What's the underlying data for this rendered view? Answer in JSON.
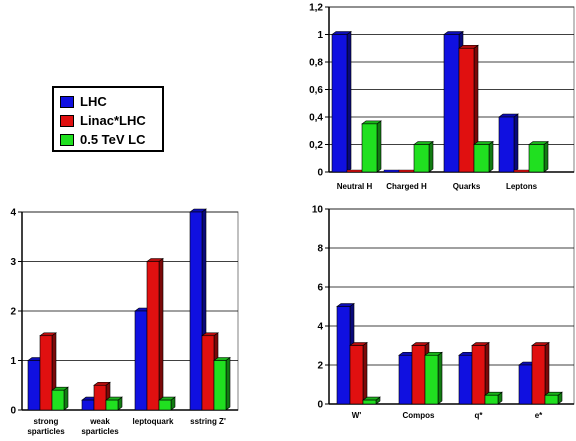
{
  "legend": {
    "position": "left",
    "items": [
      {
        "label": "LHC",
        "color": "#1010e0"
      },
      {
        "label": "Linac*LHC",
        "color": "#e01010"
      },
      {
        "label": "0.5 TeV LC",
        "color": "#20e020"
      }
    ]
  },
  "chart_data": [
    {
      "id": "top-right",
      "type": "bar",
      "categories": [
        "Neutral H",
        "Charged H",
        "Quarks",
        "Leptons"
      ],
      "series": [
        {
          "name": "LHC",
          "values": [
            1.0,
            0.0,
            1.0,
            0.4
          ]
        },
        {
          "name": "Linac*LHC",
          "values": [
            0.0,
            0.0,
            0.9,
            0.0
          ]
        },
        {
          "name": "0.5 TeV LC",
          "values": [
            0.35,
            0.2,
            0.2,
            0.2
          ]
        }
      ],
      "ylim": [
        0,
        1.2
      ],
      "yticks": [
        "0",
        "0,2",
        "0,4",
        "0,6",
        "0,8",
        "1",
        "1,2"
      ],
      "grid": true
    },
    {
      "id": "bottom-left",
      "type": "bar",
      "categories": [
        [
          "strong",
          "sparticles"
        ],
        [
          "weak",
          "sparticles"
        ],
        [
          "leptoquark"
        ],
        [
          "sstring Z'"
        ]
      ],
      "series": [
        {
          "name": "LHC",
          "values": [
            1.0,
            0.2,
            2.0,
            4.0
          ]
        },
        {
          "name": "Linac*LHC",
          "values": [
            1.5,
            0.5,
            3.0,
            1.5
          ]
        },
        {
          "name": "0.5 TeV LC",
          "values": [
            0.4,
            0.2,
            0.2,
            1.0
          ]
        }
      ],
      "ylim": [
        0,
        4
      ],
      "yticks": [
        "0",
        "1",
        "2",
        "3",
        "4"
      ],
      "grid": true
    },
    {
      "id": "bottom-right",
      "type": "bar",
      "categories": [
        "W'",
        "Compos",
        "q*",
        "e*"
      ],
      "series": [
        {
          "name": "LHC",
          "values": [
            5.0,
            2.5,
            2.5,
            2.0
          ]
        },
        {
          "name": "Linac*LHC",
          "values": [
            3.0,
            3.0,
            3.0,
            3.0
          ]
        },
        {
          "name": "0.5 TeV LC",
          "values": [
            0.2,
            2.5,
            0.45,
            0.45
          ]
        }
      ],
      "ylim": [
        0,
        10
      ],
      "yticks": [
        "0",
        "2",
        "4",
        "6",
        "8",
        "10"
      ],
      "grid": true
    }
  ]
}
